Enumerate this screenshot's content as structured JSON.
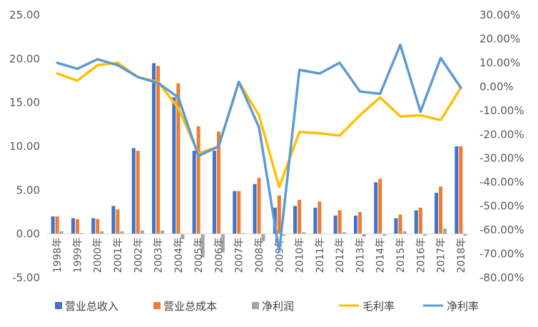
{
  "chart_data": {
    "type": "bar",
    "title": "",
    "categories": [
      "1998年",
      "1999年",
      "2000年",
      "2001年",
      "2002年",
      "2003年",
      "2004年",
      "2005年",
      "2006年",
      "2007年",
      "2008年",
      "2009年",
      "2010年",
      "2011年",
      "2012年",
      "2013年",
      "2014年",
      "2015年",
      "2016年",
      "2017年",
      "2018年"
    ],
    "y_left": {
      "ylim": [
        -5,
        25
      ],
      "ticks": [
        -5,
        0,
        5,
        10,
        15,
        20,
        25
      ],
      "tick_labels": [
        "-5.00",
        "0.00",
        "5.00",
        "10.00",
        "15.00",
        "20.00",
        "25.00"
      ]
    },
    "y_right": {
      "ylim": [
        -80,
        30
      ],
      "ticks": [
        -80,
        -70,
        -60,
        -50,
        -40,
        -30,
        -20,
        -10,
        0,
        10,
        20,
        30
      ],
      "tick_labels": [
        "-80.00%",
        "-70.00%",
        "-60.00%",
        "-50.00%",
        "-40.00%",
        "-30.00%",
        "-20.00%",
        "-10.00%",
        "0.00%",
        "10.00%",
        "20.00%",
        "30.00%"
      ]
    },
    "series": [
      {
        "name": "营业总收入",
        "kind": "bar",
        "axis": "left",
        "color": "#4472C4",
        "values": [
          2.0,
          1.8,
          1.8,
          3.2,
          9.8,
          19.5,
          15.6,
          9.5,
          9.5,
          4.9,
          5.7,
          3.0,
          3.2,
          3.0,
          2.1,
          2.1,
          5.9,
          1.8,
          2.7,
          4.7,
          10.0
        ]
      },
      {
        "name": "营业总成本",
        "kind": "bar",
        "axis": "left",
        "color": "#ED7D31",
        "values": [
          2.0,
          1.7,
          1.7,
          2.8,
          9.5,
          19.2,
          17.2,
          12.3,
          11.7,
          4.9,
          6.4,
          4.4,
          3.9,
          3.7,
          2.7,
          2.5,
          6.3,
          2.2,
          3.0,
          5.4,
          10.0
        ]
      },
      {
        "name": "净利润",
        "kind": "bar",
        "axis": "left",
        "color": "#A5A5A5",
        "values": [
          0.3,
          0.1,
          0.3,
          0.3,
          0.4,
          0.4,
          -0.6,
          -2.7,
          -2.1,
          0.1,
          -0.8,
          -0.2,
          0.2,
          0.0,
          0.2,
          -0.3,
          -0.2,
          0.3,
          -0.2,
          0.6,
          -0.2
        ]
      },
      {
        "name": "毛利率",
        "kind": "line",
        "axis": "right",
        "color": "#FFC000",
        "values": [
          5.5,
          2.5,
          9.0,
          10.0,
          4.0,
          2.0,
          -9.0,
          -28.0,
          -25.0,
          2.0,
          -12.0,
          -42.0,
          -19.0,
          -19.5,
          -20.5,
          -12.0,
          -4.5,
          -12.5,
          -12.0,
          -14.0,
          -0.5
        ]
      },
      {
        "name": "净利率",
        "kind": "line",
        "axis": "right",
        "color": "#5B9BD5",
        "values": [
          10.0,
          7.5,
          11.5,
          9.0,
          4.0,
          1.5,
          -4.5,
          -29.0,
          -25.0,
          2.0,
          -17.0,
          -69.0,
          7.0,
          5.5,
          10.0,
          -2.0,
          -3.0,
          17.5,
          -10.5,
          12.0,
          -0.5
        ]
      }
    ],
    "grid": false,
    "legend_position": "bottom"
  }
}
